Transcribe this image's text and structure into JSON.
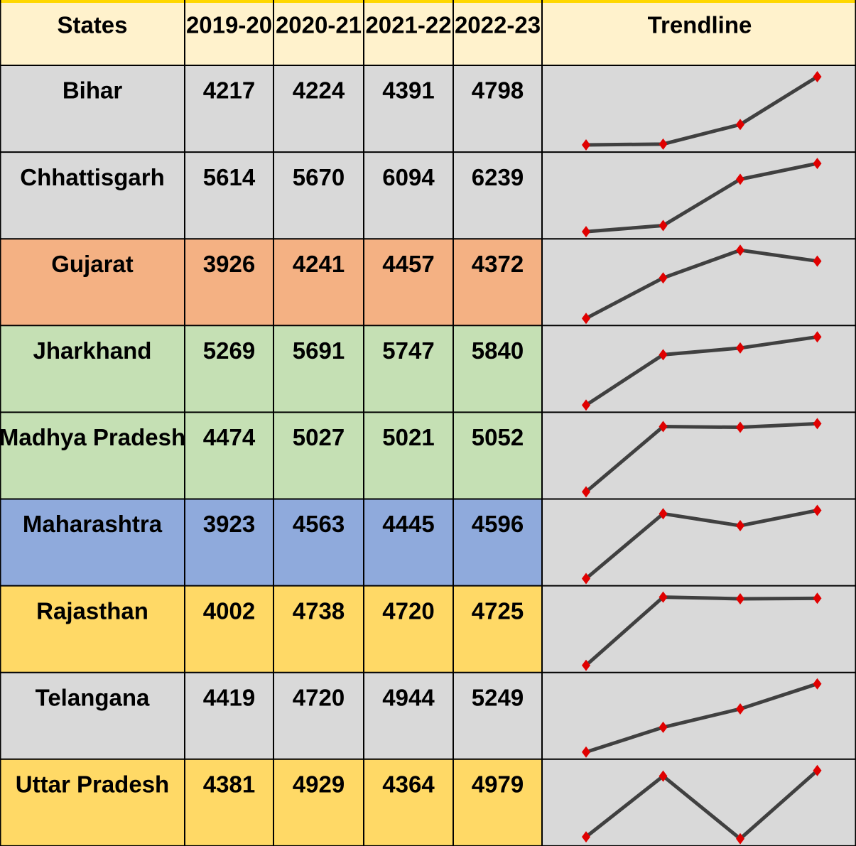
{
  "table": {
    "headers": [
      "States",
      "2019-20",
      "2020-21",
      "2021-22",
      "2022-23",
      "Trendline"
    ],
    "header_color": "#fff2cc",
    "trend_color": "#d9d9d9",
    "rows": [
      {
        "state": "Bihar",
        "values": [
          4217,
          4224,
          4391,
          4798
        ],
        "color": "#d9d9d9"
      },
      {
        "state": "Chhattisgarh",
        "values": [
          5614,
          5670,
          6094,
          6239
        ],
        "color": "#d9d9d9"
      },
      {
        "state": "Gujarat",
        "values": [
          3926,
          4241,
          4457,
          4372
        ],
        "color": "#f4b183"
      },
      {
        "state": "Jharkhand",
        "values": [
          5269,
          5691,
          5747,
          5840
        ],
        "color": "#c5e0b4"
      },
      {
        "state": "Madhya Pradesh",
        "values": [
          4474,
          5027,
          5021,
          5052
        ],
        "color": "#c5e0b4"
      },
      {
        "state": "Maharashtra",
        "values": [
          3923,
          4563,
          4445,
          4596
        ],
        "color": "#8faadc"
      },
      {
        "state": "Rajasthan",
        "values": [
          4002,
          4738,
          4720,
          4725
        ],
        "color": "#ffd966"
      },
      {
        "state": "Telangana",
        "values": [
          4419,
          4720,
          4944,
          5249
        ],
        "color": "#d9d9d9"
      },
      {
        "state": "Uttar Pradesh",
        "values": [
          4381,
          4929,
          4364,
          4979
        ],
        "color": "#ffd966"
      }
    ]
  }
}
